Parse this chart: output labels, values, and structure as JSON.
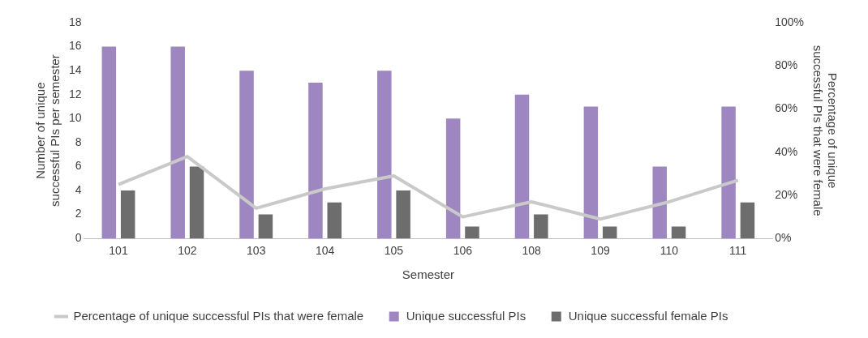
{
  "chart_data": {
    "type": "bar",
    "categories": [
      "101",
      "102",
      "103",
      "104",
      "105",
      "106",
      "108",
      "109",
      "110",
      "111"
    ],
    "xlabel": "Semester",
    "ylabel": "Number of unique successful PIs per semester",
    "y2label": "Percentage of unique successful PIs that were female",
    "series": [
      {
        "name": "Unique successful PIs",
        "color": "#9e87c0",
        "values": [
          16,
          16,
          14,
          13,
          14,
          10,
          12,
          11,
          6,
          11
        ]
      },
      {
        "name": "Unique successful female PIs",
        "color": "#6d6d6d",
        "values": [
          4,
          6,
          2,
          3,
          4,
          1,
          2,
          1,
          1,
          3
        ]
      },
      {
        "name": "Percentage of unique successful PIs that were female",
        "type": "line",
        "axis": "y2",
        "color": "#c9c9c9",
        "values": [
          25,
          38,
          14,
          23,
          29,
          10,
          17,
          9,
          17,
          27
        ]
      }
    ],
    "ylim": [
      0,
      18
    ],
    "yticks": [
      0,
      2,
      4,
      6,
      8,
      10,
      12,
      14,
      16,
      18
    ],
    "y2lim": [
      0,
      100
    ],
    "y2ticks": [
      {
        "value": 0,
        "label": "0%"
      },
      {
        "value": 20,
        "label": "20%"
      },
      {
        "value": 40,
        "label": "40%"
      },
      {
        "value": 60,
        "label": "60%"
      },
      {
        "value": 80,
        "label": "80%"
      },
      {
        "value": 100,
        "label": "100%"
      }
    ],
    "grid": false,
    "legend": "bottom",
    "marker": "none",
    "line_style": "solid"
  }
}
